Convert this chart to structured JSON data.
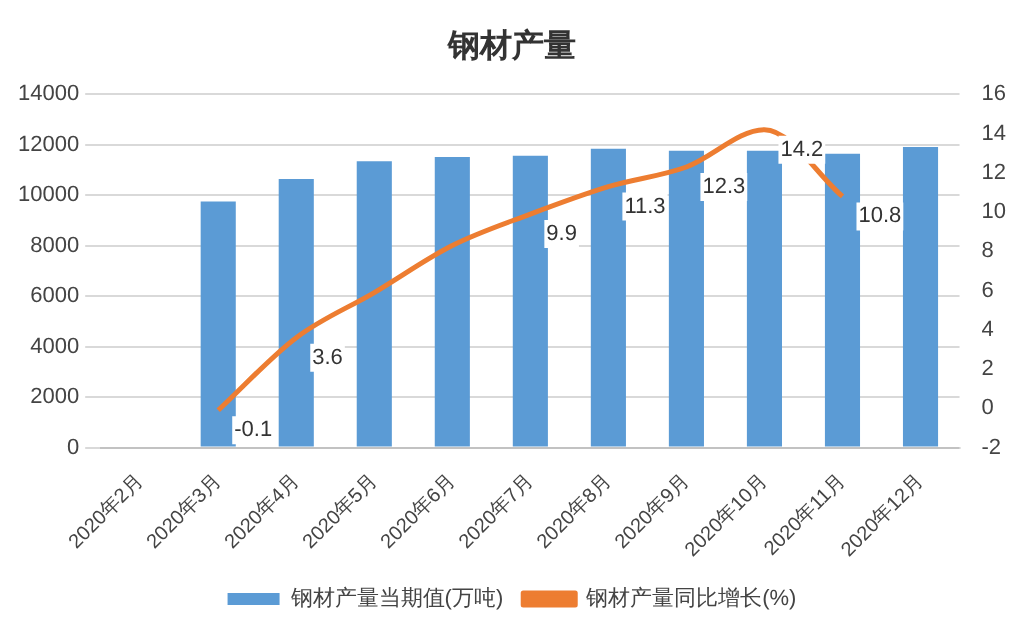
{
  "chart_data": {
    "type": "bar",
    "title": "钢材产量",
    "categories": [
      "2020年2月",
      "2020年3月",
      "2020年4月",
      "2020年5月",
      "2020年6月",
      "2020年7月",
      "2020年8月",
      "2020年9月",
      "2020年10月",
      "2020年11月",
      "2020年12月"
    ],
    "series": [
      {
        "name": "钢材产量当期值(万吨)",
        "color": "#5b9bd5",
        "values": [
          null,
          9750,
          10650,
          11350,
          11520,
          11570,
          11850,
          11770,
          11770,
          11650,
          11910
        ]
      },
      {
        "name": "钢材产量同比增长(%)",
        "type": "line",
        "axis": "y2",
        "color": "#ed7d31",
        "values": [
          null,
          -0.1,
          3.6,
          5.9,
          8.3,
          9.9,
          11.3,
          12.3,
          14.2,
          10.8,
          null
        ],
        "value_labels": [
          null,
          "-0.1",
          "3.6",
          null,
          null,
          "9.9",
          "11.3",
          "12.3",
          "14.2",
          "10.8",
          null
        ]
      }
    ],
    "ylim": [
      0,
      14000
    ],
    "yticks": [
      0,
      2000,
      4000,
      6000,
      8000,
      10000,
      12000,
      14000
    ],
    "y2lim": [
      -2,
      16
    ],
    "y2ticks": [
      -2,
      0,
      2,
      4,
      6,
      8,
      10,
      12,
      14,
      16
    ],
    "grid": "y",
    "legend": "bottom",
    "marker": "none"
  }
}
